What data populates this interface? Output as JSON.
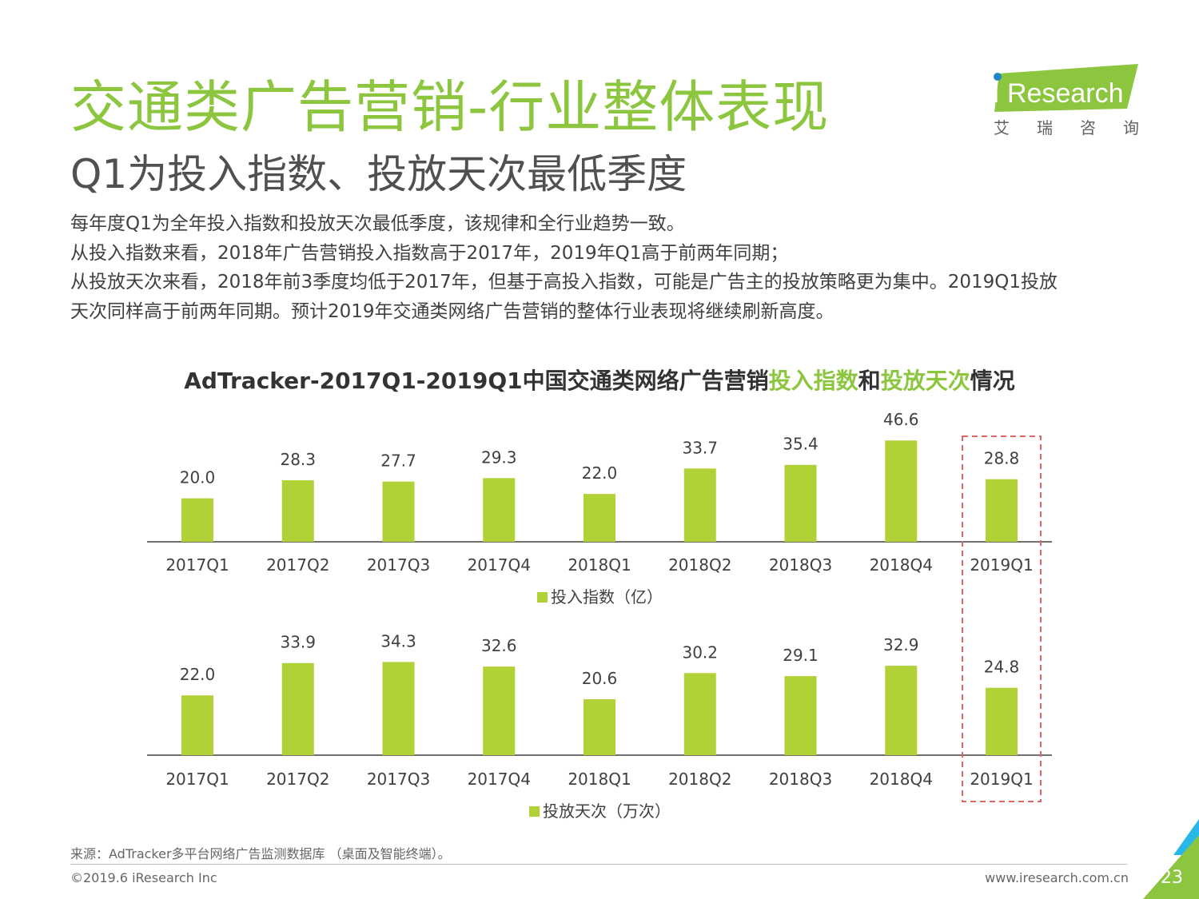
{
  "header": {
    "title": "交通类广告营销-行业整体表现",
    "subtitle": "Q1为投入指数、投放天次最低季度"
  },
  "logo": {
    "brand_i": "i",
    "brand_rest": "Research",
    "chinese": "艾瑞咨询"
  },
  "body": {
    "line1": "每年度Q1为全年投入指数和投放天次最低季度，该规律和全行业趋势一致。",
    "line2": "从投入指数来看，2018年广告营销投入指数高于2017年，2019年Q1高于前两年同期；",
    "line3": "从投放天次来看，2018年前3季度均低于2017年，但基于高投入指数，可能是广告主的投放策略更为集中。2019Q1投放",
    "line4": "天次同样高于前两年同期。预计2019年交通类网络广告营销的整体行业表现将继续刷新高度。"
  },
  "chart_title": {
    "part1": "AdTracker-2017Q1-2019Q1中国交通类网络广告营销",
    "part2": "投入指数",
    "part3": "和",
    "part4": "投放天次",
    "part5": "情况"
  },
  "chart_data": [
    {
      "type": "bar",
      "categories": [
        "2017Q1",
        "2017Q2",
        "2017Q3",
        "2017Q4",
        "2018Q1",
        "2018Q2",
        "2018Q3",
        "2018Q4",
        "2019Q1"
      ],
      "series": [
        {
          "name": "投入指数（亿）",
          "values": [
            20.0,
            28.3,
            27.7,
            29.3,
            22.0,
            33.7,
            35.4,
            46.6,
            28.8
          ]
        }
      ],
      "legend": "bottom",
      "color": "#b0d236",
      "highlight_category": "2019Q1"
    },
    {
      "type": "bar",
      "categories": [
        "2017Q1",
        "2017Q2",
        "2017Q3",
        "2017Q4",
        "2018Q1",
        "2018Q2",
        "2018Q3",
        "2018Q4",
        "2019Q1"
      ],
      "series": [
        {
          "name": "投放天次（万次）",
          "values": [
            22.0,
            33.9,
            34.3,
            32.6,
            20.6,
            30.2,
            29.1,
            32.9,
            24.8
          ]
        }
      ],
      "legend": "bottom",
      "color": "#b0d236",
      "highlight_category": "2019Q1"
    }
  ],
  "footer": {
    "source": "来源：AdTracker多平台网络广告监测数据库 （桌面及智能终端）。",
    "copyright": "©2019.6 iResearch Inc",
    "website": "www.iresearch.com.cn",
    "page": "23"
  },
  "colors": {
    "accent": "#8cc63f",
    "bar": "#b0d236",
    "highlight_box": "#e06666",
    "corner_blue": "#29b6e8"
  }
}
